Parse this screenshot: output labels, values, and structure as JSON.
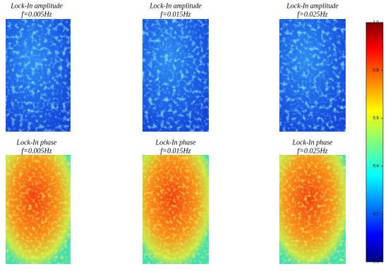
{
  "panels": [
    {
      "title": "Lock-In amplitude",
      "subtitle": "f=0.005Hz"
    },
    {
      "title": "Lock-In amplitude",
      "subtitle": "f=0.015Hz"
    },
    {
      "title": "Lock-In amplitude",
      "subtitle": "f=0.025Hz"
    },
    {
      "title": "Lock-In phase",
      "subtitle": "f=0.005Hz"
    },
    {
      "title": "Lock-In phase",
      "subtitle": "f=0.015Hz"
    },
    {
      "title": "Lock-In phase",
      "subtitle": "f=0.025Hz"
    }
  ],
  "colorbar": {
    "ylim": [
      0,
      1
    ],
    "yticks": [
      {
        "value": 0,
        "label": "0.0"
      },
      {
        "value": 0.2,
        "label": "0.2"
      },
      {
        "value": 0.4,
        "label": "0.4"
      },
      {
        "value": 0.6,
        "label": "0.6"
      },
      {
        "value": 0.8,
        "label": "0.8"
      },
      {
        "value": 1,
        "label": "1.0"
      }
    ]
  }
}
